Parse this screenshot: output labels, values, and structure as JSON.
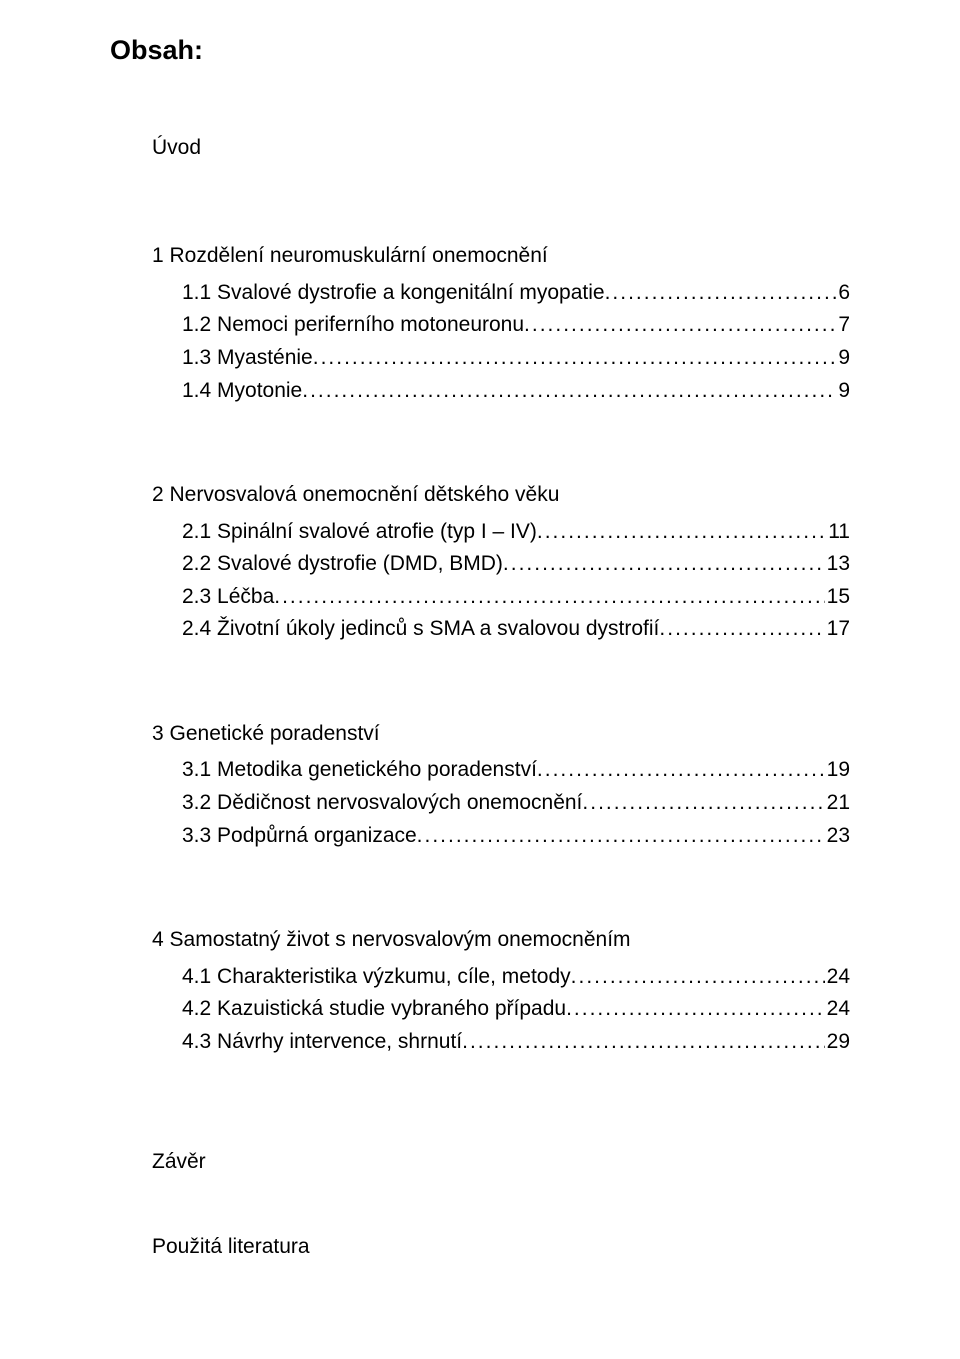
{
  "heading": "Obsah:",
  "sections": [
    {
      "lead": "Úvod",
      "entries": []
    },
    {
      "lead": "1 Rozdělení neuromuskulární onemocnění",
      "entries": [
        {
          "label": "1.1 Svalové dystrofie a kongenitální myopatie",
          "page": "6",
          "indent": "sub"
        },
        {
          "label": "1.2 Nemoci periferního motoneuronu",
          "page": "7",
          "indent": "sub"
        },
        {
          "label": "1.3 Myasténie",
          "page": "9",
          "indent": "sub"
        },
        {
          "label": "1.4 Myotonie",
          "page": "9",
          "indent": "sub"
        }
      ]
    },
    {
      "lead": "2 Nervosvalová onemocnění dětského věku",
      "entries": [
        {
          "label": "2.1 Spinální svalové atrofie (typ I – IV)",
          "page": "11",
          "indent": "sub"
        },
        {
          "label": "2.2 Svalové dystrofie (DMD, BMD)",
          "page": "13",
          "indent": "sub"
        },
        {
          "label": "2.3 Léčba",
          "page": "15",
          "indent": "sub"
        },
        {
          "label": "2.4 Životní úkoly jedinců s SMA a svalovou dystrofií",
          "page": "17",
          "indent": "sub"
        }
      ]
    },
    {
      "lead": "3 Genetické poradenství",
      "entries": [
        {
          "label": "3.1 Metodika genetického poradenství",
          "page": "19",
          "indent": "sub"
        },
        {
          "label": "3.2 Dědičnost nervosvalových onemocnění",
          "page": "21",
          "indent": "sub"
        },
        {
          "label": "3.3 Podpůrná organizace",
          "page": "23",
          "indent": "sub"
        }
      ]
    },
    {
      "lead": "4 Samostatný život s nervosvalovým onemocněním",
      "entries": [
        {
          "label": "4.1 Charakteristika výzkumu, cíle, metody",
          "page": "24",
          "indent": "sub"
        },
        {
          "label": "4.2 Kazuistická studie vybraného případu",
          "page": "24",
          "indent": "sub"
        },
        {
          "label": "4.3 Návrhy intervence, shrnutí",
          "page": "29",
          "indent": "sub"
        }
      ]
    }
  ],
  "footers": [
    "Závěr",
    "Použitá literatura"
  ]
}
